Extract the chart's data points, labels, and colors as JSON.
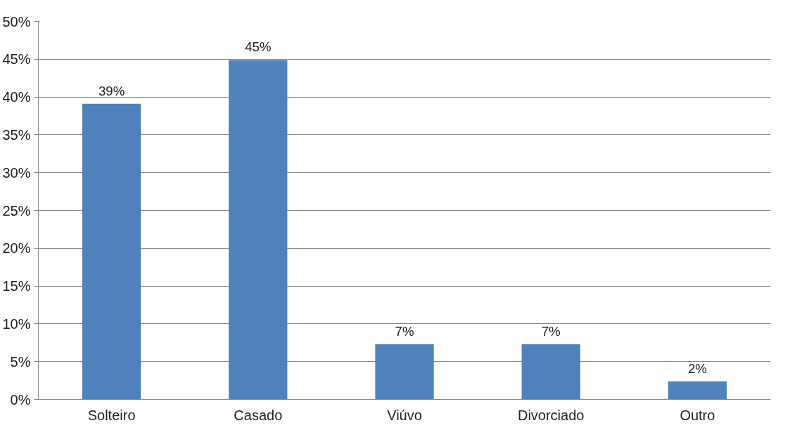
{
  "chart_data": {
    "type": "bar",
    "categories": [
      "Solteiro",
      "Casado",
      "Viúvo",
      "Divorciado",
      "Outro"
    ],
    "values": [
      39.1,
      44.9,
      7.3,
      7.3,
      2.4
    ],
    "value_labels": [
      "39%",
      "45%",
      "7%",
      "7%",
      "2%"
    ],
    "color": "#4f81bd",
    "ylim": [
      0,
      50
    ],
    "yticks": [
      {
        "value": 0,
        "label": "0%"
      },
      {
        "value": 5,
        "label": "5%"
      },
      {
        "value": 10,
        "label": "10%"
      },
      {
        "value": 15,
        "label": "15%"
      },
      {
        "value": 20,
        "label": "20%"
      },
      {
        "value": 25,
        "label": "25%"
      },
      {
        "value": 30,
        "label": "30%"
      },
      {
        "value": 35,
        "label": "35%"
      },
      {
        "value": 40,
        "label": "40%"
      },
      {
        "value": 45,
        "label": "45%"
      },
      {
        "value": 50,
        "label": "50%"
      }
    ],
    "grid": "y"
  }
}
